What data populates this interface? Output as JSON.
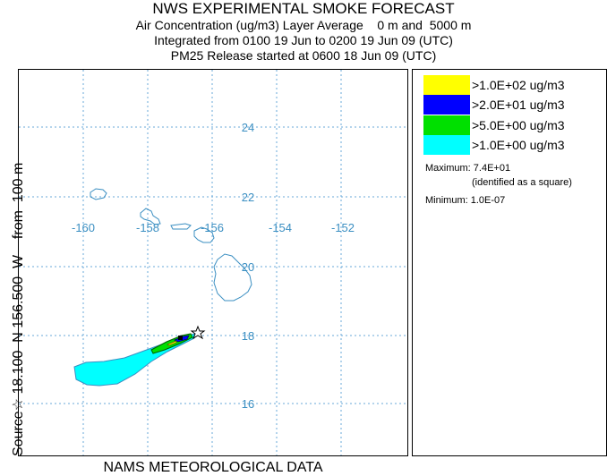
{
  "header": {
    "title": "NWS EXPERIMENTAL SMOKE FORECAST",
    "line1": "Air Concentration (ug/m3) Layer Average    0 m and  5000 m",
    "line2": "Integrated from 0100 19 Jun to 0200 19 Jun 09 (UTC)",
    "line3": "PM25 Release started at 0600 18 Jun 09 (UTC)"
  },
  "side_label": "Source☆ 18.100  N 156.500  W    from  100 m",
  "bottom_label": "NAMS METEOROLOGICAL DATA",
  "map": {
    "lon_labels": [
      "-160",
      "-158",
      "-156",
      "-154",
      "-152"
    ],
    "lat_labels": [
      "24",
      "22",
      "20",
      "18",
      "16"
    ],
    "source_marker": "star-icon",
    "colors": {
      "gridline": "#6aa8d8",
      "coastline": "#3b8fc2"
    }
  },
  "legend": {
    "items": [
      {
        "label": ">1.0E+02 ug/m3",
        "color": "#ffff00"
      },
      {
        "label": ">2.0E+01 ug/m3",
        "color": "#0000ff"
      },
      {
        "label": ">5.0E+00 ug/m3",
        "color": "#00e000"
      },
      {
        "label": ">1.0E+00 ug/m3",
        "color": "#00ffff"
      }
    ],
    "maximum": "Maximum: 7.4E+01",
    "maximum_note": "(identified as a square)",
    "minimum": "Minimum: 1.0E-07"
  }
}
